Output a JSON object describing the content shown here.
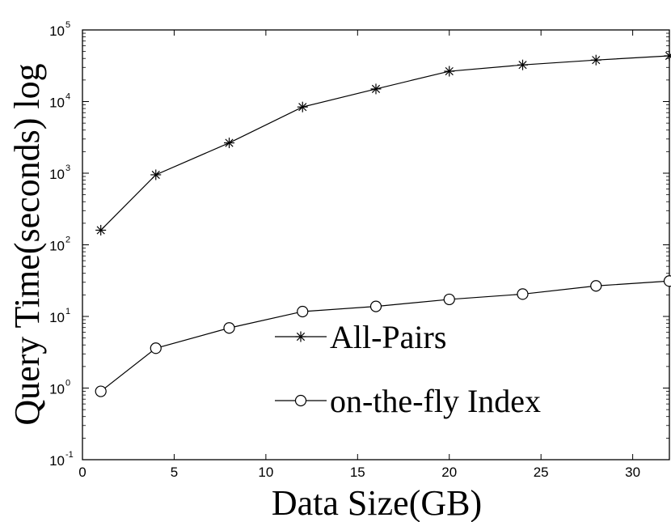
{
  "chart_data": {
    "type": "line",
    "title": "",
    "xlabel": "Data Size(GB)",
    "ylabel": "Query Time(seconds) log",
    "xlim": [
      0,
      32
    ],
    "ylim": [
      0.1,
      100000
    ],
    "yscale": "log",
    "grid": false,
    "legend_position": "center-right",
    "x_ticks": [
      0,
      5,
      10,
      15,
      20,
      25,
      30
    ],
    "y_ticks": [
      {
        "base": "10",
        "exp": "-1",
        "value": 0.1
      },
      {
        "base": "10",
        "exp": "0",
        "value": 1
      },
      {
        "base": "10",
        "exp": "1",
        "value": 10
      },
      {
        "base": "10",
        "exp": "2",
        "value": 100
      },
      {
        "base": "10",
        "exp": "3",
        "value": 1000
      },
      {
        "base": "10",
        "exp": "4",
        "value": 10000
      },
      {
        "base": "10",
        "exp": "5",
        "value": 100000
      }
    ],
    "series": [
      {
        "name": "All-Pairs",
        "marker": "asterisk",
        "color": "#000000",
        "x": [
          1,
          4,
          8,
          12,
          16,
          20,
          24,
          28,
          32
        ],
        "y": [
          160,
          950,
          2650,
          8400,
          15000,
          26500,
          32500,
          38000,
          43500
        ]
      },
      {
        "name": "on-the-fly Index",
        "marker": "circle",
        "color": "#000000",
        "x": [
          1,
          4,
          8,
          12,
          16,
          20,
          24,
          28,
          32
        ],
        "y": [
          0.9,
          3.6,
          6.9,
          11.7,
          13.8,
          17.3,
          20.5,
          26.7,
          31.2
        ]
      }
    ]
  }
}
